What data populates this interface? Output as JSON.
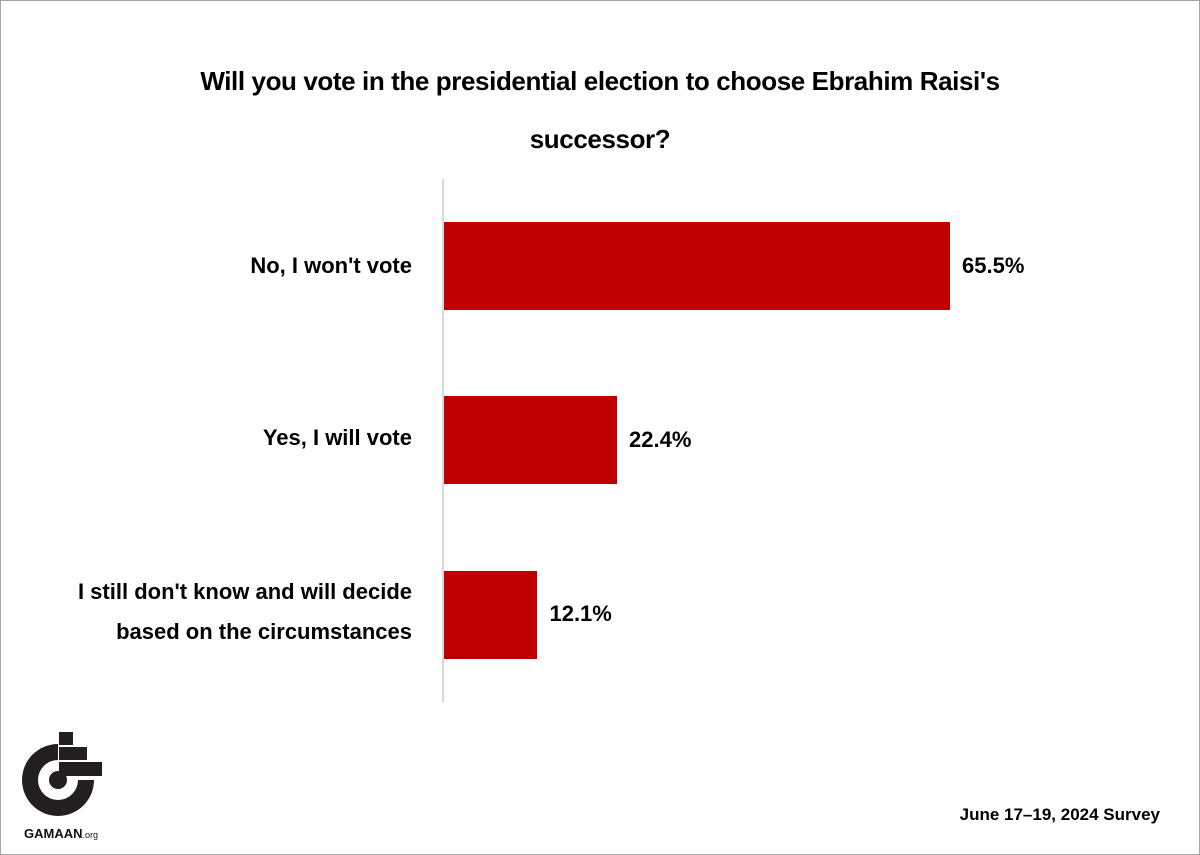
{
  "chart_data": {
    "type": "bar",
    "orientation": "horizontal",
    "title": "Will you vote in the presidential election to choose Ebrahim Raisi's successor?",
    "categories": [
      "No, I won't vote",
      "Yes, I will vote",
      "I still don't know and will decide based on the circumstances"
    ],
    "values": [
      65.5,
      22.4,
      12.1
    ],
    "value_labels": [
      "65.5%",
      "22.4%",
      "12.1%"
    ],
    "xlabel": "",
    "ylabel": "",
    "xlim": [
      0,
      100
    ],
    "grid": false,
    "legend": null,
    "bar_color": "#c00000"
  },
  "title": {
    "line1": "Will you vote in the presidential election to choose Ebrahim Raisi's",
    "line2": "successor?"
  },
  "rows": [
    {
      "label_lines": [
        "No, I won't vote"
      ],
      "value": 65.5,
      "value_label": "65.5%"
    },
    {
      "label_lines": [
        "Yes, I will vote"
      ],
      "value": 22.4,
      "value_label": "22.4%"
    },
    {
      "label_lines": [
        "I still don't know and will decide",
        "based on the circumstances"
      ],
      "value": 12.1,
      "value_label": "12.1%"
    }
  ],
  "colors": {
    "bar": "#c00000",
    "axis": "#d9d9d9",
    "text": "#000000"
  },
  "logo": {
    "name": "GAMAAN",
    "suffix": ".org"
  },
  "footer": {
    "survey_date": "June 17–19, 2024 Survey"
  }
}
